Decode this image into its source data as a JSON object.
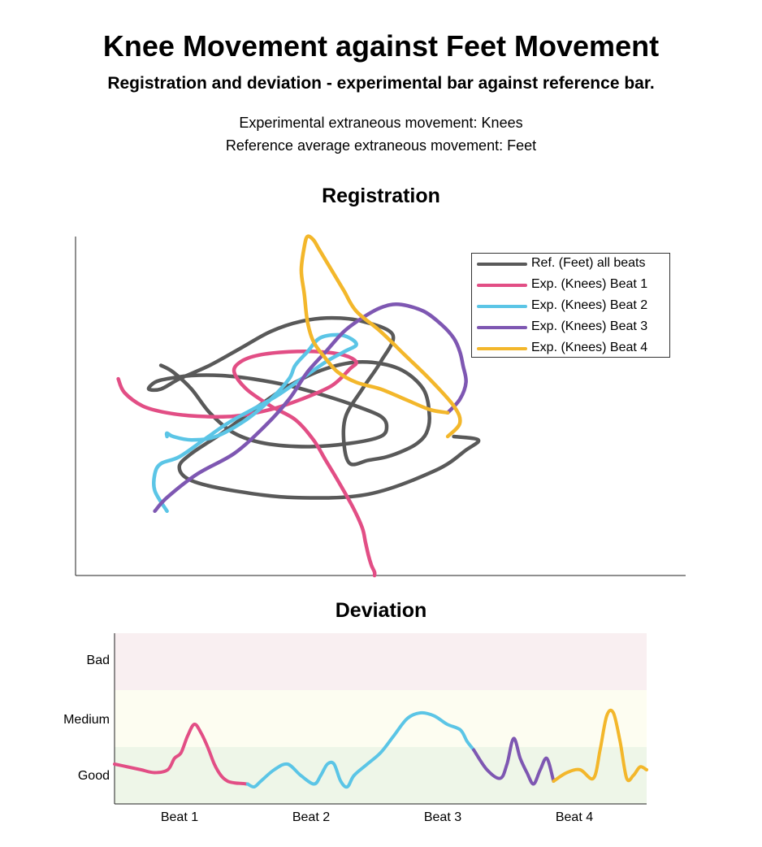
{
  "title": "Knee Movement against Feet Movement",
  "subtitle": "Registration and deviation - experimental bar against reference bar.",
  "info_lines": [
    "Experimental extraneous movement: Knees",
    "Reference average extraneous movement: Feet"
  ],
  "chart_data": [
    {
      "type": "line",
      "title": "Registration",
      "xlabel": "",
      "ylabel": "",
      "grid": false,
      "axes_ticks": false,
      "legend_position": "top-right",
      "series": [
        {
          "name": "Ref. (Feet) all beats",
          "color": "#595959",
          "x": [
            0.62,
            0.66,
            0.64,
            0.59,
            0.48,
            0.36,
            0.26,
            0.19,
            0.17,
            0.19,
            0.24,
            0.3,
            0.35,
            0.41,
            0.47,
            0.53,
            0.57,
            0.58,
            0.575,
            0.56,
            0.54,
            0.51,
            0.48,
            0.45,
            0.44,
            0.443,
            0.47,
            0.5,
            0.52,
            0.47,
            0.42,
            0.37,
            0.32,
            0.27,
            0.22,
            0.17,
            0.14,
            0.12,
            0.13,
            0.15,
            0.19,
            0.24,
            0.29,
            0.35,
            0.41,
            0.46,
            0.5,
            0.51,
            0.5,
            0.45,
            0.38,
            0.31,
            0.26,
            0.22,
            0.19,
            0.16,
            0.14
          ],
          "y": [
            0.41,
            0.4,
            0.37,
            0.31,
            0.24,
            0.23,
            0.25,
            0.28,
            0.32,
            0.36,
            0.42,
            0.5,
            0.56,
            0.61,
            0.63,
            0.61,
            0.55,
            0.47,
            0.42,
            0.39,
            0.37,
            0.35,
            0.34,
            0.33,
            0.39,
            0.47,
            0.55,
            0.63,
            0.71,
            0.75,
            0.76,
            0.75,
            0.72,
            0.67,
            0.62,
            0.58,
            0.55,
            0.55,
            0.57,
            0.58,
            0.59,
            0.59,
            0.58,
            0.56,
            0.53,
            0.5,
            0.47,
            0.44,
            0.41,
            0.39,
            0.38,
            0.39,
            0.42,
            0.48,
            0.55,
            0.6,
            0.62
          ]
        },
        {
          "name": "Exp. (Knees) Beat 1",
          "color": "#e24e85",
          "x": [
            0.07,
            0.08,
            0.11,
            0.15,
            0.2,
            0.26,
            0.32,
            0.37,
            0.42,
            0.45,
            0.46,
            0.44,
            0.4,
            0.35,
            0.3,
            0.27,
            0.26,
            0.28,
            0.32,
            0.36,
            0.39,
            0.41,
            0.43,
            0.455,
            0.47,
            0.475,
            0.48,
            0.485,
            0.49,
            0.49
          ],
          "y": [
            0.58,
            0.54,
            0.5,
            0.48,
            0.47,
            0.47,
            0.49,
            0.52,
            0.56,
            0.61,
            0.63,
            0.65,
            0.66,
            0.66,
            0.65,
            0.63,
            0.6,
            0.55,
            0.5,
            0.46,
            0.4,
            0.34,
            0.28,
            0.2,
            0.14,
            0.1,
            0.06,
            0.03,
            0.01,
            0.0
          ]
        },
        {
          "name": "Exp. (Knees) Beat 2",
          "color": "#5bc5e6",
          "x": [
            0.15,
            0.15,
            0.16,
            0.19,
            0.23,
            0.28,
            0.32,
            0.35,
            0.36,
            0.38,
            0.4,
            0.43,
            0.45,
            0.46,
            0.44,
            0.41,
            0.37,
            0.33,
            0.29,
            0.25,
            0.21,
            0.17,
            0.14,
            0.13,
            0.13,
            0.15
          ],
          "y": [
            0.41,
            0.42,
            0.41,
            0.4,
            0.41,
            0.46,
            0.52,
            0.58,
            0.62,
            0.66,
            0.7,
            0.71,
            0.7,
            0.68,
            0.66,
            0.63,
            0.58,
            0.53,
            0.49,
            0.45,
            0.4,
            0.35,
            0.33,
            0.3,
            0.25,
            0.19
          ]
        },
        {
          "name": "Exp. (Knees) Beat 3",
          "color": "#7e57b2",
          "x": [
            0.13,
            0.15,
            0.2,
            0.26,
            0.31,
            0.35,
            0.38,
            0.41,
            0.44,
            0.47,
            0.5,
            0.53,
            0.57,
            0.6,
            0.62,
            0.63,
            0.635,
            0.64,
            0.63,
            0.61
          ],
          "y": [
            0.19,
            0.23,
            0.3,
            0.36,
            0.44,
            0.52,
            0.6,
            0.66,
            0.72,
            0.76,
            0.79,
            0.8,
            0.78,
            0.74,
            0.7,
            0.66,
            0.62,
            0.57,
            0.52,
            0.48
          ]
        },
        {
          "name": "Exp. (Knees) Beat 4",
          "color": "#f3b72b",
          "x": [
            0.61,
            0.58,
            0.54,
            0.5,
            0.46,
            0.43,
            0.41,
            0.39,
            0.38,
            0.375,
            0.37,
            0.375,
            0.38,
            0.39,
            0.4,
            0.42,
            0.44,
            0.46,
            0.5,
            0.54,
            0.58,
            0.62,
            0.63,
            0.61
          ],
          "y": [
            0.48,
            0.49,
            0.52,
            0.55,
            0.57,
            0.6,
            0.64,
            0.69,
            0.75,
            0.83,
            0.9,
            0.97,
            1.0,
            0.99,
            0.96,
            0.9,
            0.84,
            0.78,
            0.72,
            0.65,
            0.58,
            0.5,
            0.45,
            0.41
          ]
        }
      ]
    },
    {
      "type": "line",
      "title": "Deviation",
      "categories": [
        "Beat 1",
        "Beat 2",
        "Beat 3",
        "Beat 4"
      ],
      "y_categories": [
        "Good",
        "Medium",
        "Bad"
      ],
      "bands": [
        {
          "label": "Good",
          "color": "#eef6e8"
        },
        {
          "label": "Medium",
          "color": "#fdfdf1"
        },
        {
          "label": "Bad",
          "color": "#f9eff1"
        }
      ],
      "ylim": [
        0,
        3
      ],
      "xlim": [
        0,
        4
      ],
      "series": [
        {
          "name": "Beat 1",
          "color": "#e24e85",
          "x": [
            0.0,
            0.1,
            0.2,
            0.3,
            0.4,
            0.45,
            0.5,
            0.55,
            0.6,
            0.65,
            0.7,
            0.75,
            0.8,
            0.85,
            0.9,
            0.95,
            1.0
          ],
          "y": [
            0.7,
            0.65,
            0.6,
            0.55,
            0.6,
            0.8,
            0.9,
            1.2,
            1.4,
            1.25,
            1.0,
            0.7,
            0.5,
            0.4,
            0.37,
            0.36,
            0.35
          ]
        },
        {
          "name": "Beat 2",
          "color": "#5bc5e6",
          "x": [
            1.0,
            1.05,
            1.1,
            1.2,
            1.3,
            1.4,
            1.5,
            1.55,
            1.6,
            1.65,
            1.7,
            1.75,
            1.8,
            1.9,
            2.0,
            2.1,
            2.2,
            2.3,
            2.4,
            2.5,
            2.6,
            2.65,
            2.7
          ],
          "y": [
            0.35,
            0.3,
            0.4,
            0.6,
            0.7,
            0.5,
            0.35,
            0.5,
            0.7,
            0.7,
            0.4,
            0.3,
            0.5,
            0.7,
            0.9,
            1.2,
            1.5,
            1.6,
            1.55,
            1.4,
            1.3,
            1.1,
            0.95
          ]
        },
        {
          "name": "Beat 3",
          "color": "#7e57b2",
          "x": [
            2.7,
            2.8,
            2.9,
            2.95,
            3.0,
            3.05,
            3.1,
            3.15,
            3.2,
            3.25,
            3.3
          ],
          "y": [
            0.95,
            0.6,
            0.45,
            0.7,
            1.15,
            0.8,
            0.55,
            0.35,
            0.6,
            0.8,
            0.4
          ]
        },
        {
          "name": "Beat 4",
          "color": "#f3b72b",
          "x": [
            3.3,
            3.4,
            3.5,
            3.6,
            3.65,
            3.7,
            3.75,
            3.8,
            3.85,
            3.9,
            3.95,
            4.0
          ],
          "y": [
            0.4,
            0.55,
            0.6,
            0.45,
            0.95,
            1.55,
            1.6,
            1.1,
            0.45,
            0.5,
            0.65,
            0.6
          ]
        }
      ]
    }
  ]
}
